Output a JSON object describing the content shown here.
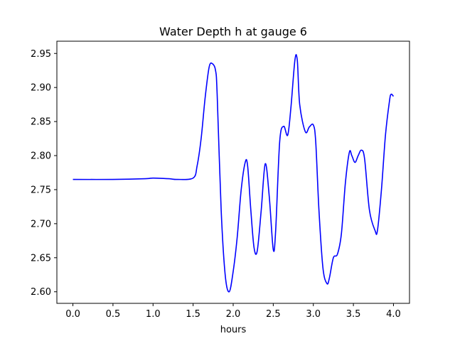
{
  "chart_data": {
    "type": "line",
    "title": "Water Depth h at gauge 6",
    "xlabel": "hours",
    "ylabel": "",
    "xlim": [
      -0.2,
      4.2
    ],
    "ylim": [
      2.583,
      2.968
    ],
    "xticks": [
      0.0,
      0.5,
      1.0,
      1.5,
      2.0,
      2.5,
      3.0,
      3.5,
      4.0
    ],
    "xtick_labels": [
      "0.0",
      "0.5",
      "1.0",
      "1.5",
      "2.0",
      "2.5",
      "3.0",
      "3.5",
      "4.0"
    ],
    "yticks": [
      2.6,
      2.65,
      2.7,
      2.75,
      2.8,
      2.85,
      2.9,
      2.95
    ],
    "ytick_labels": [
      "2.60",
      "2.65",
      "2.70",
      "2.75",
      "2.80",
      "2.85",
      "2.90",
      "2.95"
    ],
    "grid": false,
    "series": [
      {
        "color": "#0000ff",
        "x": [
          0.0,
          0.5,
          0.9,
          1.0,
          1.2,
          1.3,
          1.5,
          1.55,
          1.6,
          1.65,
          1.7,
          1.74,
          1.78,
          1.8,
          1.85,
          1.9,
          1.95,
          2.0,
          2.05,
          2.1,
          2.15,
          2.18,
          2.22,
          2.26,
          2.3,
          2.35,
          2.4,
          2.45,
          2.5,
          2.53,
          2.58,
          2.63,
          2.68,
          2.72,
          2.77,
          2.8,
          2.83,
          2.9,
          2.95,
          3.0,
          3.03,
          3.07,
          3.12,
          3.17,
          3.2,
          3.25,
          3.3,
          3.35,
          3.4,
          3.45,
          3.48,
          3.52,
          3.56,
          3.6,
          3.64,
          3.7,
          3.77,
          3.8,
          3.85,
          3.9,
          3.95,
          3.97,
          4.0
        ],
        "y": [
          2.765,
          2.765,
          2.766,
          2.767,
          2.766,
          2.765,
          2.767,
          2.785,
          2.825,
          2.885,
          2.93,
          2.935,
          2.925,
          2.89,
          2.72,
          2.625,
          2.6,
          2.63,
          2.68,
          2.75,
          2.79,
          2.785,
          2.72,
          2.665,
          2.66,
          2.72,
          2.788,
          2.74,
          2.662,
          2.69,
          2.82,
          2.843,
          2.83,
          2.87,
          2.94,
          2.94,
          2.875,
          2.835,
          2.842,
          2.845,
          2.82,
          2.72,
          2.635,
          2.612,
          2.62,
          2.65,
          2.655,
          2.685,
          2.76,
          2.805,
          2.8,
          2.79,
          2.8,
          2.808,
          2.795,
          2.72,
          2.69,
          2.69,
          2.75,
          2.83,
          2.88,
          2.89,
          2.887
        ]
      }
    ]
  }
}
